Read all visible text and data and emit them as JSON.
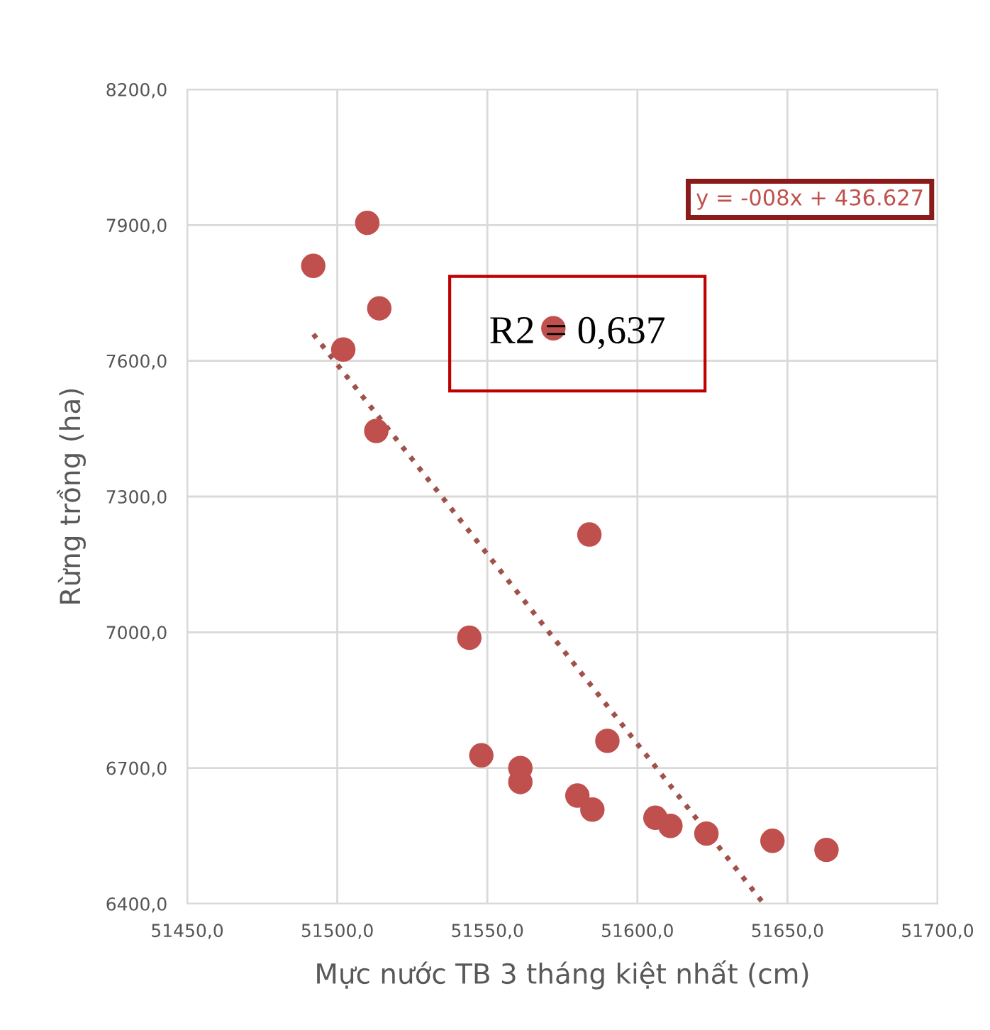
{
  "chart_data": {
    "type": "scatter",
    "xlabel": "Mực nước TB 3 tháng kiệt nhất (cm)",
    "ylabel": "Rừng trồng (ha)",
    "xlim": [
      51450,
      51700
    ],
    "ylim": [
      6400,
      8200
    ],
    "xticks": [
      {
        "value": 51450,
        "label": "51450,0"
      },
      {
        "value": 51500,
        "label": "51500,0"
      },
      {
        "value": 51550,
        "label": "51550,0"
      },
      {
        "value": 51600,
        "label": "51600,0"
      },
      {
        "value": 51650,
        "label": "51650,0"
      },
      {
        "value": 51700,
        "label": "51700,0"
      }
    ],
    "yticks": [
      {
        "value": 6400,
        "label": "6400,0"
      },
      {
        "value": 6700,
        "label": "6700,0"
      },
      {
        "value": 7000,
        "label": "7000,0"
      },
      {
        "value": 7300,
        "label": "7300,0"
      },
      {
        "value": 7600,
        "label": "7600,0"
      },
      {
        "value": 7900,
        "label": "7900,0"
      },
      {
        "value": 8200,
        "label": "8200,0"
      }
    ],
    "grid": true,
    "marker": "circle",
    "series": [
      {
        "color": "#c0504d",
        "x": [
          51492,
          51510,
          51514,
          51502,
          51513,
          51572,
          51584,
          51544,
          51548,
          51561,
          51561,
          51590,
          51580,
          51585,
          51606,
          51611,
          51623,
          51645,
          51663
        ],
        "values": [
          7810,
          7905,
          7716,
          7625,
          7445,
          7672,
          7216,
          6988,
          6728,
          6700,
          6669,
          6760,
          6639,
          6608,
          6590,
          6572,
          6555,
          6539,
          6519
        ]
      },
      {
        "type": "line",
        "color": "#a0524a",
        "line_style": "dotted",
        "marker": "none",
        "x": [
          51492,
          51642
        ],
        "values": [
          7659,
          6401
        ]
      }
    ],
    "annotations": [
      "y = -008x + 436.627",
      "R2 = 0,637"
    ]
  }
}
